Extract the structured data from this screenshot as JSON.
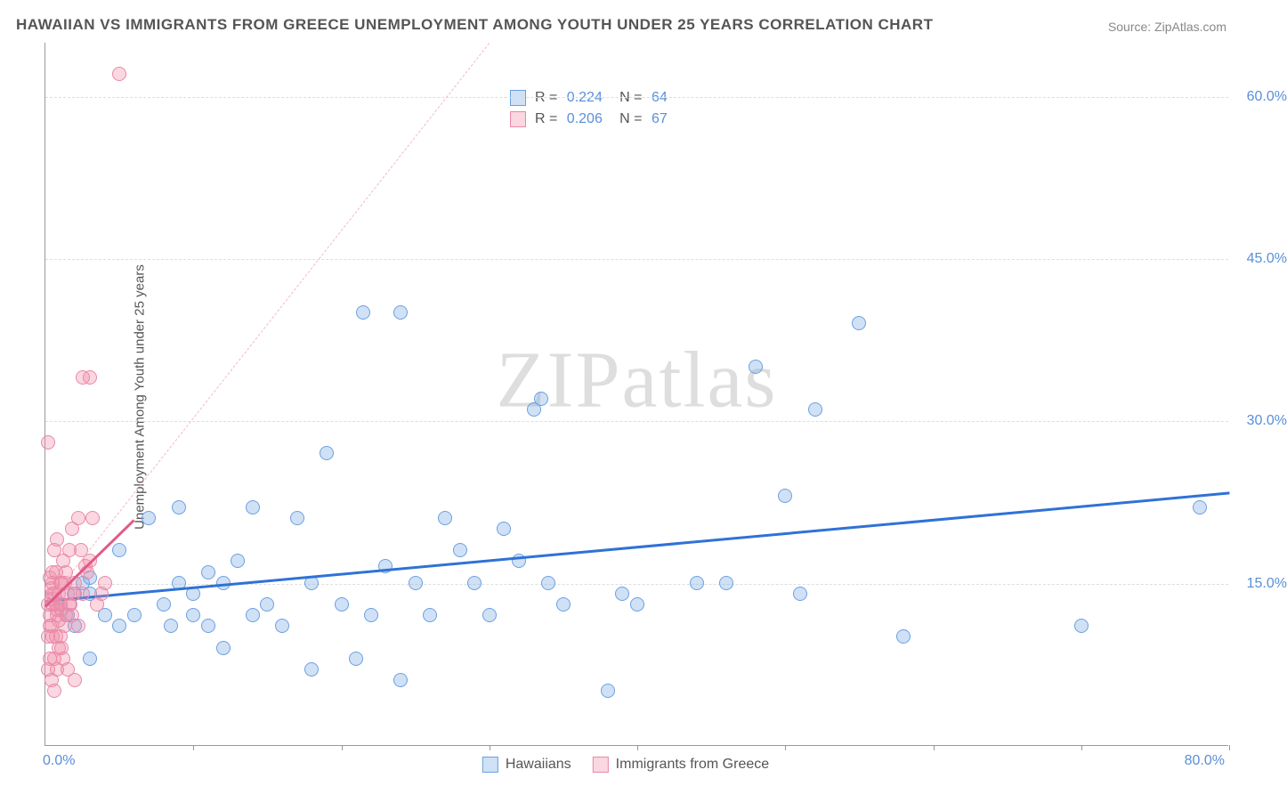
{
  "title": "HAWAIIAN VS IMMIGRANTS FROM GREECE UNEMPLOYMENT AMONG YOUTH UNDER 25 YEARS CORRELATION CHART",
  "source": "Source: ZipAtlas.com",
  "y_axis_label": "Unemployment Among Youth under 25 years",
  "watermark": "ZIPatlas",
  "chart": {
    "type": "scatter",
    "background_color": "#ffffff",
    "grid_color": "#dddddd",
    "axis_color": "#999999",
    "xlim": [
      0,
      80
    ],
    "ylim": [
      0,
      65
    ],
    "x_tick_positions": [
      10,
      20,
      30,
      40,
      50,
      60,
      70,
      80
    ],
    "y_ticks": [
      {
        "value": 15,
        "label": "15.0%"
      },
      {
        "value": 30,
        "label": "30.0%"
      },
      {
        "value": 45,
        "label": "45.0%"
      },
      {
        "value": 60,
        "label": "60.0%"
      }
    ],
    "x_origin_label": "0.0%",
    "x_max_label": "80.0%",
    "marker_radius": 8,
    "marker_stroke_width": 1,
    "series": [
      {
        "name": "Hawaiians",
        "fill_color": "rgba(120,170,230,0.35)",
        "stroke_color": "#6aa0e0",
        "r": "0.224",
        "n": "64",
        "trend": {
          "x1": 0,
          "y1": 13.5,
          "x2": 80,
          "y2": 23.5,
          "color": "#2f72d6",
          "width": 3,
          "dash": "solid"
        },
        "dashline": null,
        "points": [
          [
            1,
            13
          ],
          [
            1.5,
            12
          ],
          [
            2,
            14
          ],
          [
            2,
            11
          ],
          [
            2.5,
            15
          ],
          [
            3,
            15.5
          ],
          [
            3,
            14
          ],
          [
            4,
            12
          ],
          [
            5,
            11
          ],
          [
            5,
            18
          ],
          [
            6,
            12
          ],
          [
            7,
            21
          ],
          [
            8,
            13
          ],
          [
            8.5,
            11
          ],
          [
            9,
            15
          ],
          [
            9,
            22
          ],
          [
            10,
            12
          ],
          [
            10,
            14
          ],
          [
            11,
            11
          ],
          [
            11,
            16
          ],
          [
            12,
            9
          ],
          [
            12,
            15
          ],
          [
            13,
            17
          ],
          [
            14,
            22
          ],
          [
            14,
            12
          ],
          [
            15,
            13
          ],
          [
            16,
            11
          ],
          [
            17,
            21
          ],
          [
            18,
            7
          ],
          [
            18,
            15
          ],
          [
            19,
            27
          ],
          [
            20,
            13
          ],
          [
            21,
            8
          ],
          [
            21.5,
            40
          ],
          [
            22,
            12
          ],
          [
            23,
            16.5
          ],
          [
            24,
            6
          ],
          [
            24,
            40
          ],
          [
            25,
            15
          ],
          [
            26,
            12
          ],
          [
            27,
            21
          ],
          [
            28,
            18
          ],
          [
            29,
            15
          ],
          [
            30,
            12
          ],
          [
            31,
            20
          ],
          [
            32,
            17
          ],
          [
            33,
            31
          ],
          [
            33.5,
            32
          ],
          [
            34,
            15
          ],
          [
            35,
            13
          ],
          [
            38,
            5
          ],
          [
            39,
            14
          ],
          [
            40,
            13
          ],
          [
            44,
            15
          ],
          [
            46,
            15
          ],
          [
            48,
            35
          ],
          [
            50,
            23
          ],
          [
            51,
            14
          ],
          [
            52,
            31
          ],
          [
            55,
            39
          ],
          [
            58,
            10
          ],
          [
            70,
            11
          ],
          [
            78,
            22
          ],
          [
            3,
            8
          ]
        ]
      },
      {
        "name": "Immigrants from Greece",
        "fill_color": "rgba(240,140,170,0.35)",
        "stroke_color": "#e889a8",
        "r": "0.206",
        "n": "67",
        "trend": {
          "x1": 0,
          "y1": 13,
          "x2": 6,
          "y2": 21,
          "color": "#e05a88",
          "width": 3,
          "dash": "solid"
        },
        "dashline": {
          "x1": 0,
          "y1": 13,
          "x2": 30,
          "y2": 65,
          "color": "#f2b8cc",
          "width": 1.5
        },
        "points": [
          [
            0.2,
            13
          ],
          [
            0.5,
            14
          ],
          [
            0.3,
            11
          ],
          [
            0.8,
            12
          ],
          [
            1,
            15
          ],
          [
            0.5,
            10
          ],
          [
            1.2,
            17
          ],
          [
            0.7,
            16
          ],
          [
            1.5,
            14
          ],
          [
            0.4,
            13.5
          ],
          [
            1.8,
            20
          ],
          [
            0.6,
            18
          ],
          [
            2,
            15
          ],
          [
            0.9,
            9
          ],
          [
            1.1,
            12.5
          ],
          [
            1.3,
            11
          ],
          [
            2.2,
            21
          ],
          [
            0.3,
            8
          ],
          [
            0.2,
            7
          ],
          [
            2.5,
            14
          ],
          [
            1.7,
            13
          ],
          [
            0.8,
            19
          ],
          [
            1,
            10
          ],
          [
            1.4,
            16
          ],
          [
            0.5,
            15
          ],
          [
            3,
            17
          ],
          [
            0.4,
            6
          ],
          [
            0.6,
            5
          ],
          [
            2.8,
            16
          ],
          [
            1.2,
            8
          ],
          [
            3.2,
            21
          ],
          [
            0.3,
            12
          ],
          [
            0.9,
            14
          ],
          [
            1.6,
            18
          ],
          [
            0.7,
            13
          ],
          [
            4,
            15
          ],
          [
            1.5,
            7
          ],
          [
            2,
            6
          ],
          [
            0.2,
            28
          ],
          [
            1.8,
            12
          ],
          [
            2.5,
            34
          ],
          [
            3,
            34
          ],
          [
            0.4,
            11
          ],
          [
            5,
            62
          ],
          [
            0.6,
            14
          ],
          [
            1,
            13
          ],
          [
            0.3,
            15.5
          ],
          [
            1.1,
            9
          ],
          [
            2.2,
            11
          ],
          [
            0.8,
            7
          ],
          [
            1.9,
            14
          ],
          [
            0.5,
            16
          ],
          [
            3.5,
            13
          ],
          [
            0.7,
            10
          ],
          [
            1.3,
            15
          ],
          [
            2.4,
            18
          ],
          [
            0.4,
            14.5
          ],
          [
            0.9,
            11.5
          ],
          [
            1.6,
            13
          ],
          [
            0.2,
            10
          ],
          [
            2.7,
            16.5
          ],
          [
            0.6,
            8
          ],
          [
            1.4,
            12
          ],
          [
            3.8,
            14
          ],
          [
            0.5,
            13
          ],
          [
            1.1,
            15
          ],
          [
            0.8,
            12.5
          ]
        ]
      }
    ],
    "correlation_legend_labels": {
      "r_prefix": "R =",
      "n_prefix": "N ="
    },
    "series_legend_labels": [
      "Hawaiians",
      "Immigrants from Greece"
    ]
  }
}
